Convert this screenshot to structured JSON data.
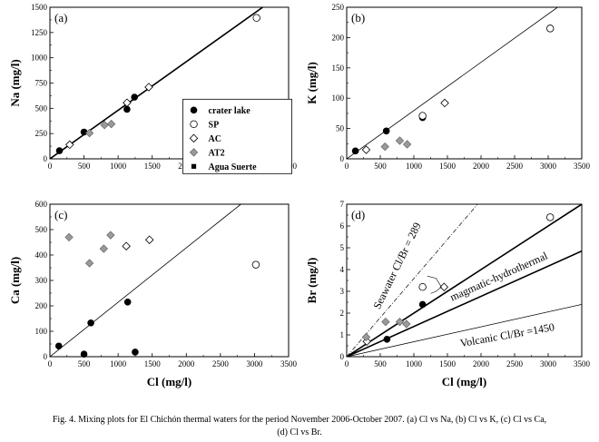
{
  "figure": {
    "caption_line1": "Fig. 4. Mixing plots for El Chichón thermal waters for the period November 2006-October 2007. (a) Cl vs Na, (b) Cl vs K, (c) Cl vs Ca,",
    "caption_line2": "(d) Cl vs Br."
  },
  "legend": [
    {
      "label": "crater lake",
      "marker": "filled-circle"
    },
    {
      "label": "SP",
      "marker": "open-circle"
    },
    {
      "label": "AC",
      "marker": "open-diamond"
    },
    {
      "label": "AT2",
      "marker": "gray-diamond"
    },
    {
      "label": "Agua Suerte",
      "marker": "filled-square"
    }
  ],
  "colors": {
    "ink": "#000000",
    "gray_fill": "#9a9a9a",
    "open_fill": "#ffffff"
  },
  "chart_data": [
    {
      "panel": "(a)",
      "type": "scatter",
      "xlabel": "",
      "ylabel": "Na (mg/l)",
      "xlim": [
        0,
        3500
      ],
      "ylim": [
        0,
        1500
      ],
      "xticks": [
        "0",
        "500",
        "1000",
        "1500",
        "2000",
        "2500",
        "3000",
        "3500"
      ],
      "yticks": [
        "0",
        "250",
        "500",
        "750",
        "1000",
        "1250",
        "1500"
      ],
      "lines": [
        {
          "name": "mixing line",
          "points": [
            [
              0,
              0
            ],
            [
              3120,
              1500
            ]
          ],
          "style": "bold"
        }
      ],
      "series": [
        {
          "name": "crater lake",
          "marker": "filled-circle",
          "points": [
            [
              140,
              80
            ],
            [
              500,
              265
            ],
            [
              1130,
              490
            ],
            [
              1240,
              610
            ]
          ]
        },
        {
          "name": "SP",
          "marker": "open-circle",
          "points": [
            [
              3030,
              1395
            ]
          ]
        },
        {
          "name": "AC",
          "marker": "open-diamond",
          "points": [
            [
              290,
              140
            ],
            [
              1130,
              555
            ],
            [
              1450,
              710
            ]
          ]
        },
        {
          "name": "AT2",
          "marker": "gray-diamond",
          "points": [
            [
              580,
              255
            ],
            [
              800,
              335
            ],
            [
              900,
              345
            ]
          ]
        },
        {
          "name": "Agua Suerte",
          "marker": "filled-square",
          "points": []
        }
      ]
    },
    {
      "panel": "(b)",
      "type": "scatter",
      "xlabel": "",
      "ylabel": "K (mg/l)",
      "xlim": [
        0,
        3500
      ],
      "ylim": [
        0,
        250
      ],
      "xticks": [
        "0",
        "500",
        "1000",
        "1500",
        "2000",
        "2500",
        "3000",
        "3500"
      ],
      "yticks": [
        "0",
        "50",
        "100",
        "150",
        "200",
        "250"
      ],
      "lines": [
        {
          "name": "mixing line",
          "points": [
            [
              0,
              0
            ],
            [
              3140,
              250
            ]
          ],
          "style": "thin"
        }
      ],
      "series": [
        {
          "name": "crater lake",
          "marker": "filled-circle",
          "points": [
            [
              130,
              13
            ],
            [
              590,
              46
            ],
            [
              1130,
              68
            ]
          ]
        },
        {
          "name": "SP",
          "marker": "open-circle",
          "points": [
            [
              1130,
              71
            ],
            [
              3030,
              215
            ]
          ]
        },
        {
          "name": "AC",
          "marker": "open-diamond",
          "points": [
            [
              290,
              15
            ],
            [
              1460,
              92
            ]
          ]
        },
        {
          "name": "AT2",
          "marker": "gray-diamond",
          "points": [
            [
              570,
              20
            ],
            [
              790,
              30
            ],
            [
              900,
              24
            ]
          ]
        }
      ]
    },
    {
      "panel": "(c)",
      "type": "scatter",
      "xlabel": "Cl (mg/l)",
      "ylabel": "Ca (mg/l)",
      "xlim": [
        0,
        3500
      ],
      "ylim": [
        0,
        600
      ],
      "xticks": [
        "0",
        "500",
        "1000",
        "1500",
        "2000",
        "2500",
        "3000",
        "3500"
      ],
      "yticks": [
        "0",
        "100",
        "200",
        "300",
        "400",
        "500",
        "600"
      ],
      "lines": [
        {
          "name": "mixing line",
          "points": [
            [
              0,
              0
            ],
            [
              2800,
              600
            ]
          ],
          "style": "thin"
        }
      ],
      "series": [
        {
          "name": "crater lake",
          "marker": "filled-circle",
          "points": [
            [
              130,
              42
            ],
            [
              500,
              10
            ],
            [
              600,
              133
            ],
            [
              1140,
              215
            ],
            [
              1250,
              18
            ]
          ]
        },
        {
          "name": "SP",
          "marker": "open-circle",
          "points": [
            [
              3020,
              362
            ]
          ]
        },
        {
          "name": "AC",
          "marker": "open-diamond",
          "points": [
            [
              1120,
              435
            ],
            [
              1460,
              460
            ]
          ]
        },
        {
          "name": "AT2",
          "marker": "gray-diamond",
          "points": [
            [
              280,
              470
            ],
            [
              580,
              368
            ],
            [
              790,
              425
            ],
            [
              890,
              478
            ]
          ]
        }
      ]
    },
    {
      "panel": "(d)",
      "type": "scatter",
      "xlabel": "Cl (mg/l)",
      "ylabel": "Br (mg/l)",
      "xlim": [
        0,
        3500
      ],
      "ylim": [
        0,
        7
      ],
      "xticks": [
        "0",
        "500",
        "1000",
        "1500",
        "2000",
        "2500",
        "3000",
        "3500"
      ],
      "yticks": [
        "0",
        "1",
        "2",
        "3",
        "4",
        "5",
        "6",
        "7"
      ],
      "lines": [
        {
          "name": "Seawater Cl/Br = 289",
          "points": [
            [
              0,
              0
            ],
            [
              1950,
              7
            ]
          ],
          "style": "dashdot"
        },
        {
          "name": "magmatic-hydrothermal upper",
          "points": [
            [
              0,
              0
            ],
            [
              3500,
              7
            ]
          ],
          "style": "bold"
        },
        {
          "name": "magmatic-hydrothermal lower",
          "points": [
            [
              0,
              0
            ],
            [
              3500,
              4.85
            ]
          ],
          "style": "bold"
        },
        {
          "name": "Volcanic Cl/Br = 1450",
          "points": [
            [
              0,
              0
            ],
            [
              3500,
              2.4
            ]
          ],
          "style": "thin"
        }
      ],
      "series": [
        {
          "name": "crater lake",
          "marker": "filled-circle",
          "points": [
            [
              600,
              0.8
            ],
            [
              1130,
              2.4
            ]
          ]
        },
        {
          "name": "SP",
          "marker": "open-circle",
          "points": [
            [
              1130,
              3.2
            ],
            [
              3030,
              6.4
            ]
          ]
        },
        {
          "name": "AC",
          "marker": "open-diamond",
          "points": [
            [
              300,
              0.7
            ],
            [
              1450,
              3.2
            ]
          ]
        },
        {
          "name": "AT2",
          "marker": "gray-diamond",
          "points": [
            [
              290,
              0.9
            ],
            [
              580,
              1.6
            ],
            [
              790,
              1.6
            ],
            [
              890,
              1.5
            ]
          ]
        }
      ],
      "annotations": {
        "seawater": "Seawater Cl/Br = 289",
        "magmatic": "magmatic-hydrothermal",
        "volcanic": "Volcanic Cl/Br =1450"
      }
    }
  ]
}
